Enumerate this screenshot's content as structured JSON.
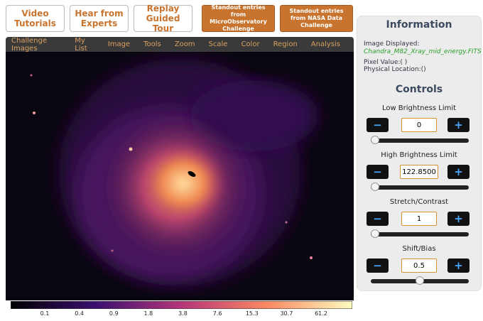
{
  "top_buttons": [
    "Video Tutorials",
    "Hear from Experts",
    "Replay Guided Tour"
  ],
  "challenge_buttons": [
    "Standout entries from MicroObservatory Challenge",
    "Standout entries from NASA Data Challenge"
  ],
  "menu": [
    "Challenge Images",
    "My List",
    "Image",
    "Tools",
    "Zoom",
    "Scale",
    "Color",
    "Region",
    "Analysis"
  ],
  "colorbar_labels": [
    "0.1",
    "0.4",
    "0.9",
    "1.8",
    "3.8",
    "7.6",
    "15.3",
    "30.7",
    "61.2"
  ],
  "info": {
    "title": "Information",
    "image_label": "Image Displayed:",
    "image_name": "Chandra_M82_Xray_mid_energy.FITS",
    "pixel_value": "Pixel Value:( )",
    "physical_location": "Physical Location:()"
  },
  "controls": {
    "title": "Controls",
    "minus": "−",
    "plus": "+",
    "items": [
      {
        "label": "Low Brightness Limit",
        "value": "0"
      },
      {
        "label": "High Brightness Limit",
        "value": "122.8500"
      },
      {
        "label": "Stretch/Contrast",
        "value": "1"
      },
      {
        "label": "Shift/Bias",
        "value": "0.5"
      }
    ]
  }
}
